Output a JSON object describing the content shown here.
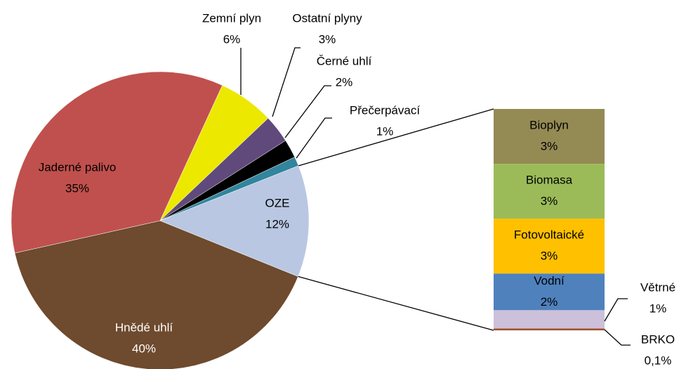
{
  "chart_data": {
    "type": "pie-of-bar",
    "pie": {
      "categories": [
        "Hnědé uhlí",
        "Jaderné palivo",
        "Zemní plyn",
        "Ostatní plyny",
        "Černé uhlí",
        "Přečerpávací",
        "OZE"
      ],
      "values": [
        40,
        35,
        6,
        3,
        2,
        1,
        12
      ],
      "value_labels": [
        "40%",
        "35%",
        "6%",
        "3%",
        "2%",
        "1%",
        "12%"
      ],
      "colors": [
        "#6e4a2e",
        "#c0504d",
        "#ece800",
        "#604a7b",
        "#000000",
        "#31859c",
        "#b9c7e2"
      ]
    },
    "bar": {
      "categories": [
        "Bioplyn",
        "Biomasa",
        "Fotovoltaické",
        "Vodní",
        "Větrné",
        "BRKO"
      ],
      "values": [
        3,
        3,
        3,
        2,
        1,
        0.1
      ],
      "value_labels": [
        "3%",
        "3%",
        "3%",
        "2%",
        "1%",
        "0,1%"
      ],
      "colors": [
        "#948a54",
        "#9bbb59",
        "#ffc000",
        "#4f81bd",
        "#ccc0da",
        "#a0522d"
      ]
    }
  }
}
